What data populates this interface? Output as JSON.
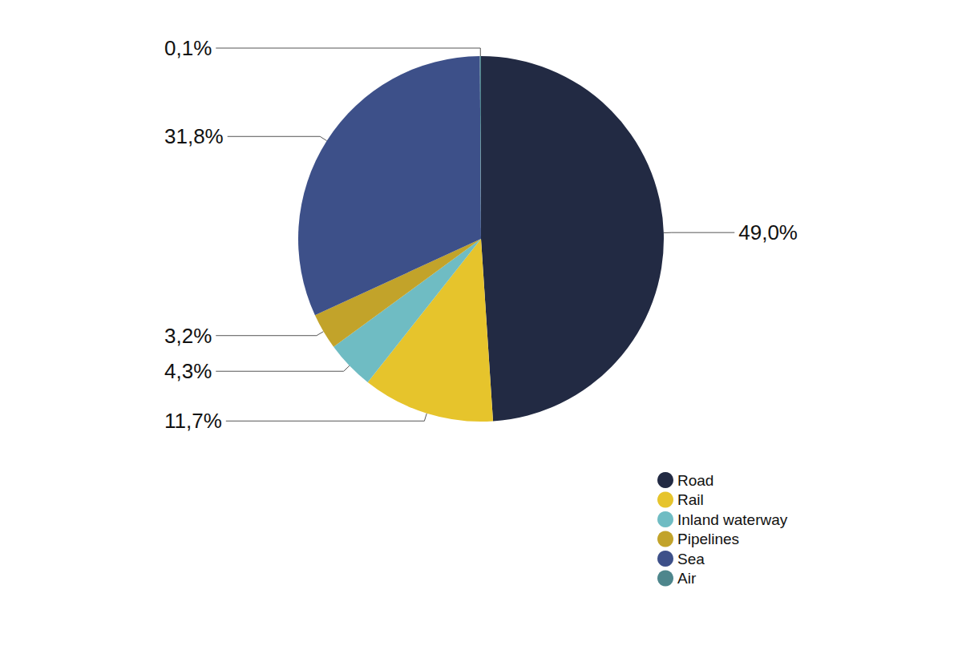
{
  "chart_data": {
    "type": "pie",
    "categories": [
      "Road",
      "Rail",
      "Inland waterway",
      "Pipelines",
      "Sea",
      "Air"
    ],
    "values": [
      49.0,
      11.7,
      4.3,
      3.2,
      31.8,
      0.1
    ],
    "value_labels": [
      "49,0%",
      "11,7%",
      "4,3%",
      "3,2%",
      "31,8%",
      "0,1%"
    ],
    "colors": [
      "#222a43",
      "#e6c42c",
      "#6fbcc3",
      "#c2a32a",
      "#3d5089",
      "#4e868c"
    ],
    "data_labels": true,
    "legend": "bottom-right"
  }
}
